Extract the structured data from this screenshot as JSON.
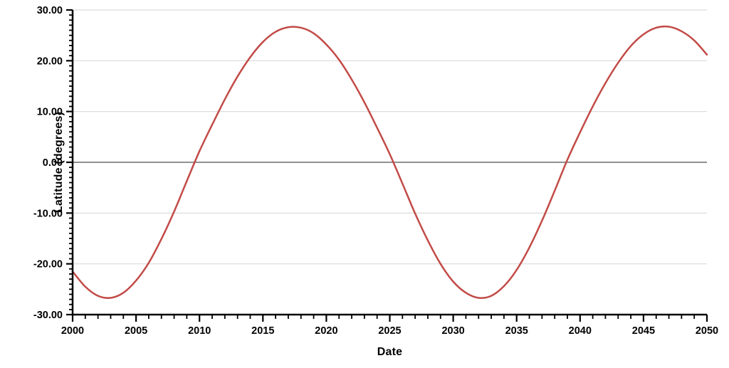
{
  "chart_data": {
    "type": "line",
    "title": "",
    "xlabel": "Date",
    "ylabel": "Latitude (degrees)",
    "xlim": [
      2000,
      2050
    ],
    "ylim": [
      -30,
      30
    ],
    "x_tick_values": [
      2000,
      2005,
      2010,
      2015,
      2020,
      2025,
      2030,
      2035,
      2040,
      2045,
      2050
    ],
    "x_tick_labels": [
      "2000",
      "2005",
      "2010",
      "2015",
      "2020",
      "2025",
      "2030",
      "2035",
      "2040",
      "2045",
      "2050"
    ],
    "x_minor_step": 1,
    "y_tick_values": [
      30,
      20,
      10,
      0,
      -10,
      -20,
      -30
    ],
    "y_tick_labels": [
      "30.00",
      "20.00",
      "10.00",
      "0.00",
      "-10.00",
      "-20.00",
      "-30.00"
    ],
    "y_minor_step": 1,
    "grid": "horizontal-major",
    "legend": "none",
    "series": [
      {
        "name": "latitude",
        "color": "#c24b47",
        "x": [
          2000,
          2001,
          2002,
          2003,
          2004,
          2005,
          2006,
          2007,
          2008,
          2009,
          2010,
          2011,
          2012,
          2013,
          2014,
          2015,
          2016,
          2017,
          2018,
          2019,
          2020,
          2021,
          2022,
          2023,
          2024,
          2025,
          2026,
          2027,
          2028,
          2029,
          2030,
          2031,
          2032,
          2033,
          2034,
          2035,
          2036,
          2037,
          2038,
          2039,
          2040,
          2041,
          2042,
          2043,
          2044,
          2045,
          2046,
          2047,
          2048,
          2049,
          2050
        ],
        "values": [
          -21.5,
          -24.5,
          -26.3,
          -26.7,
          -25.7,
          -23.3,
          -19.8,
          -15.1,
          -9.7,
          -3.7,
          2.2,
          7.4,
          12.4,
          16.9,
          20.7,
          23.7,
          25.7,
          26.6,
          26.5,
          25.4,
          23.2,
          20.2,
          16.3,
          11.8,
          6.8,
          1.6,
          -4.2,
          -10.1,
          -15.4,
          -20.0,
          -23.5,
          -25.7,
          -26.7,
          -26.3,
          -24.4,
          -21.2,
          -16.8,
          -11.5,
          -5.6,
          0.5,
          5.9,
          11.0,
          15.6,
          19.6,
          22.9,
          25.2,
          26.5,
          26.7,
          25.8,
          24.0,
          21.2
        ]
      }
    ],
    "key_points": {
      "minima": [
        {
          "x": 2002.8,
          "y": -26.7
        },
        {
          "x": 2032.2,
          "y": -26.7
        }
      ],
      "maxima": [
        {
          "x": 2017.4,
          "y": 26.7
        },
        {
          "x": 2046.7,
          "y": 26.7
        }
      ],
      "zero_crossings": [
        2009.6,
        2025.3,
        2038.9
      ]
    }
  },
  "colors": {
    "background": "#ffffff",
    "line": "#c24b47",
    "gridline": "#d9d9d9",
    "zero_line": "#808080",
    "axis": "#000000",
    "text": "#000000"
  }
}
